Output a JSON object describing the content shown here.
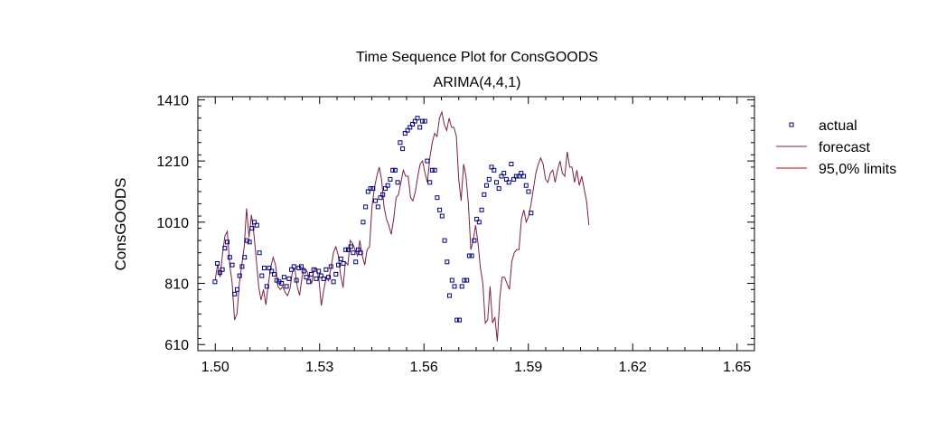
{
  "chart_data": {
    "type": "line",
    "title": "Time Sequence Plot for ConsGOODS",
    "subtitle": "ARIMA(4,4,1)",
    "xlabel": "",
    "ylabel": "ConsGOODS",
    "xlim": [
      1.495,
      1.655
    ],
    "ylim": [
      590,
      1420
    ],
    "xticks": [
      1.5,
      1.53,
      1.56,
      1.59,
      1.62,
      1.65
    ],
    "xtick_labels": [
      "1.50",
      "1.53",
      "1.56",
      "1.59",
      "1.62",
      "1.65"
    ],
    "yticks": [
      610,
      810,
      1010,
      1210,
      1410
    ],
    "ytick_labels": [
      "610",
      "810",
      "1010",
      "1210",
      "1410"
    ],
    "grid": false,
    "legend_position": "right",
    "series": [
      {
        "name": "actual",
        "style": "square-markers",
        "color": "#000080",
        "x_start": 1.4999,
        "x_step": 0.00071,
        "values": [
          815,
          875,
          845,
          855,
          925,
          945,
          895,
          870,
          775,
          790,
          835,
          865,
          895,
          950,
          945,
          990,
          1010,
          1000,
          910,
          835,
          860,
          800,
          860,
          850,
          840,
          820,
          815,
          810,
          830,
          800,
          825,
          855,
          865,
          820,
          860,
          865,
          850,
          830,
          815,
          840,
          855,
          825,
          850,
          835,
          825,
          855,
          830,
          865,
          815,
          840,
          870,
          890,
          875,
          920,
          920,
          930,
          910,
          880,
          920,
          910,
          1010,
          1060,
          1110,
          1120,
          1120,
          1080,
          1060,
          1090,
          1100,
          1120,
          1130,
          1150,
          1180,
          1180,
          1140,
          1270,
          1250,
          1300,
          1310,
          1320,
          1330,
          1340,
          1350,
          1320,
          1340,
          1340,
          1210,
          1140,
          1180,
          1180,
          1090,
          1050,
          1030,
          950,
          880,
          770,
          820,
          800,
          690,
          690,
          800,
          820,
          820,
          900,
          900,
          950,
          1020,
          1010,
          1050,
          1100,
          1130,
          1150,
          1190,
          1180,
          1140,
          1120,
          1160,
          1170,
          1150,
          1140,
          1200,
          1150,
          1160,
          1160,
          1170,
          1160,
          1130,
          1110,
          1040
        ]
      },
      {
        "name": "forecast",
        "style": "line",
        "color": "#7b1f45",
        "x_start": 1.5,
        "x_step": 0.000693,
        "values": [
          822,
          872,
          830,
          906,
          965,
          980,
          870,
          813,
          690,
          710,
          810,
          870,
          930,
          1055,
          960,
          1034,
          975,
          890,
          800,
          755,
          790,
          740,
          806,
          862,
          895,
          870,
          800,
          790,
          800,
          780,
          770,
          793,
          848,
          858,
          799,
          771,
          830,
          860,
          850,
          830,
          810,
          858,
          860,
          822,
          737,
          788,
          829,
          819,
          860,
          910,
          930,
          902,
          837,
          796,
          880,
          870,
          950,
          940,
          920,
          900,
          950,
          900,
          870,
          920,
          930,
          1060,
          1120,
          1160,
          1190,
          1150,
          1060,
          1020,
          1000,
          970,
          1020,
          1090,
          1100,
          1140,
          1180,
          1160,
          1160,
          1090,
          1080,
          1110,
          1160,
          1200,
          1210,
          1170,
          1140,
          1220,
          1270,
          1300,
          1290,
          1350,
          1370,
          1330,
          1310,
          1350,
          1320,
          1320,
          1290,
          1150,
          1080,
          1200,
          1160,
          1070,
          920,
          950,
          1000,
          940,
          860,
          810,
          680,
          690,
          800,
          680,
          700,
          620,
          760,
          830,
          830,
          810,
          790,
          880,
          910,
          920,
          920,
          1020,
          1050,
          1010,
          1030,
          1070,
          1120,
          1170,
          1200,
          1220,
          1200,
          1150,
          1140,
          1170,
          1180,
          1140,
          1180,
          1210,
          1170,
          1160,
          1240,
          1190,
          1190,
          1140,
          1180,
          1130,
          1160,
          1120,
          1080,
          1000
        ]
      },
      {
        "name": "95,0% limits",
        "style": "line",
        "color": "#cc0000",
        "values": []
      }
    ]
  }
}
